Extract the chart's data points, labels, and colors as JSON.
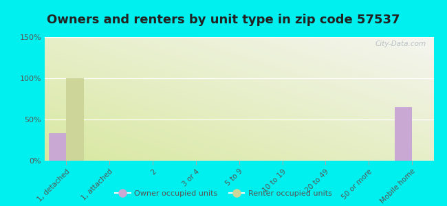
{
  "title": "Owners and renters by unit type in zip code 57537",
  "categories": [
    "1, detached",
    "1, attached",
    "2",
    "3 or 4",
    "5 to 9",
    "10 to 19",
    "20 to 49",
    "50 or more",
    "Mobile home"
  ],
  "owner_values": [
    33,
    0,
    0,
    0,
    0,
    0,
    0,
    0,
    65
  ],
  "renter_values": [
    100,
    0,
    0,
    0,
    0,
    0,
    0,
    0,
    0
  ],
  "owner_color": "#c9a8d4",
  "renter_color": "#cdd698",
  "ylim": [
    0,
    150
  ],
  "yticks": [
    0,
    50,
    100,
    150
  ],
  "ytick_labels": [
    "0%",
    "50%",
    "100%",
    "150%"
  ],
  "background_color": "#00f0f0",
  "plot_bg_top": "#f5f5f0",
  "plot_bg_bottom": "#d8e8a0",
  "bar_width": 0.4,
  "legend_owner": "Owner occupied units",
  "legend_renter": "Renter occupied units",
  "watermark": "City-Data.com",
  "title_fontsize": 13,
  "title_color": "#222222"
}
